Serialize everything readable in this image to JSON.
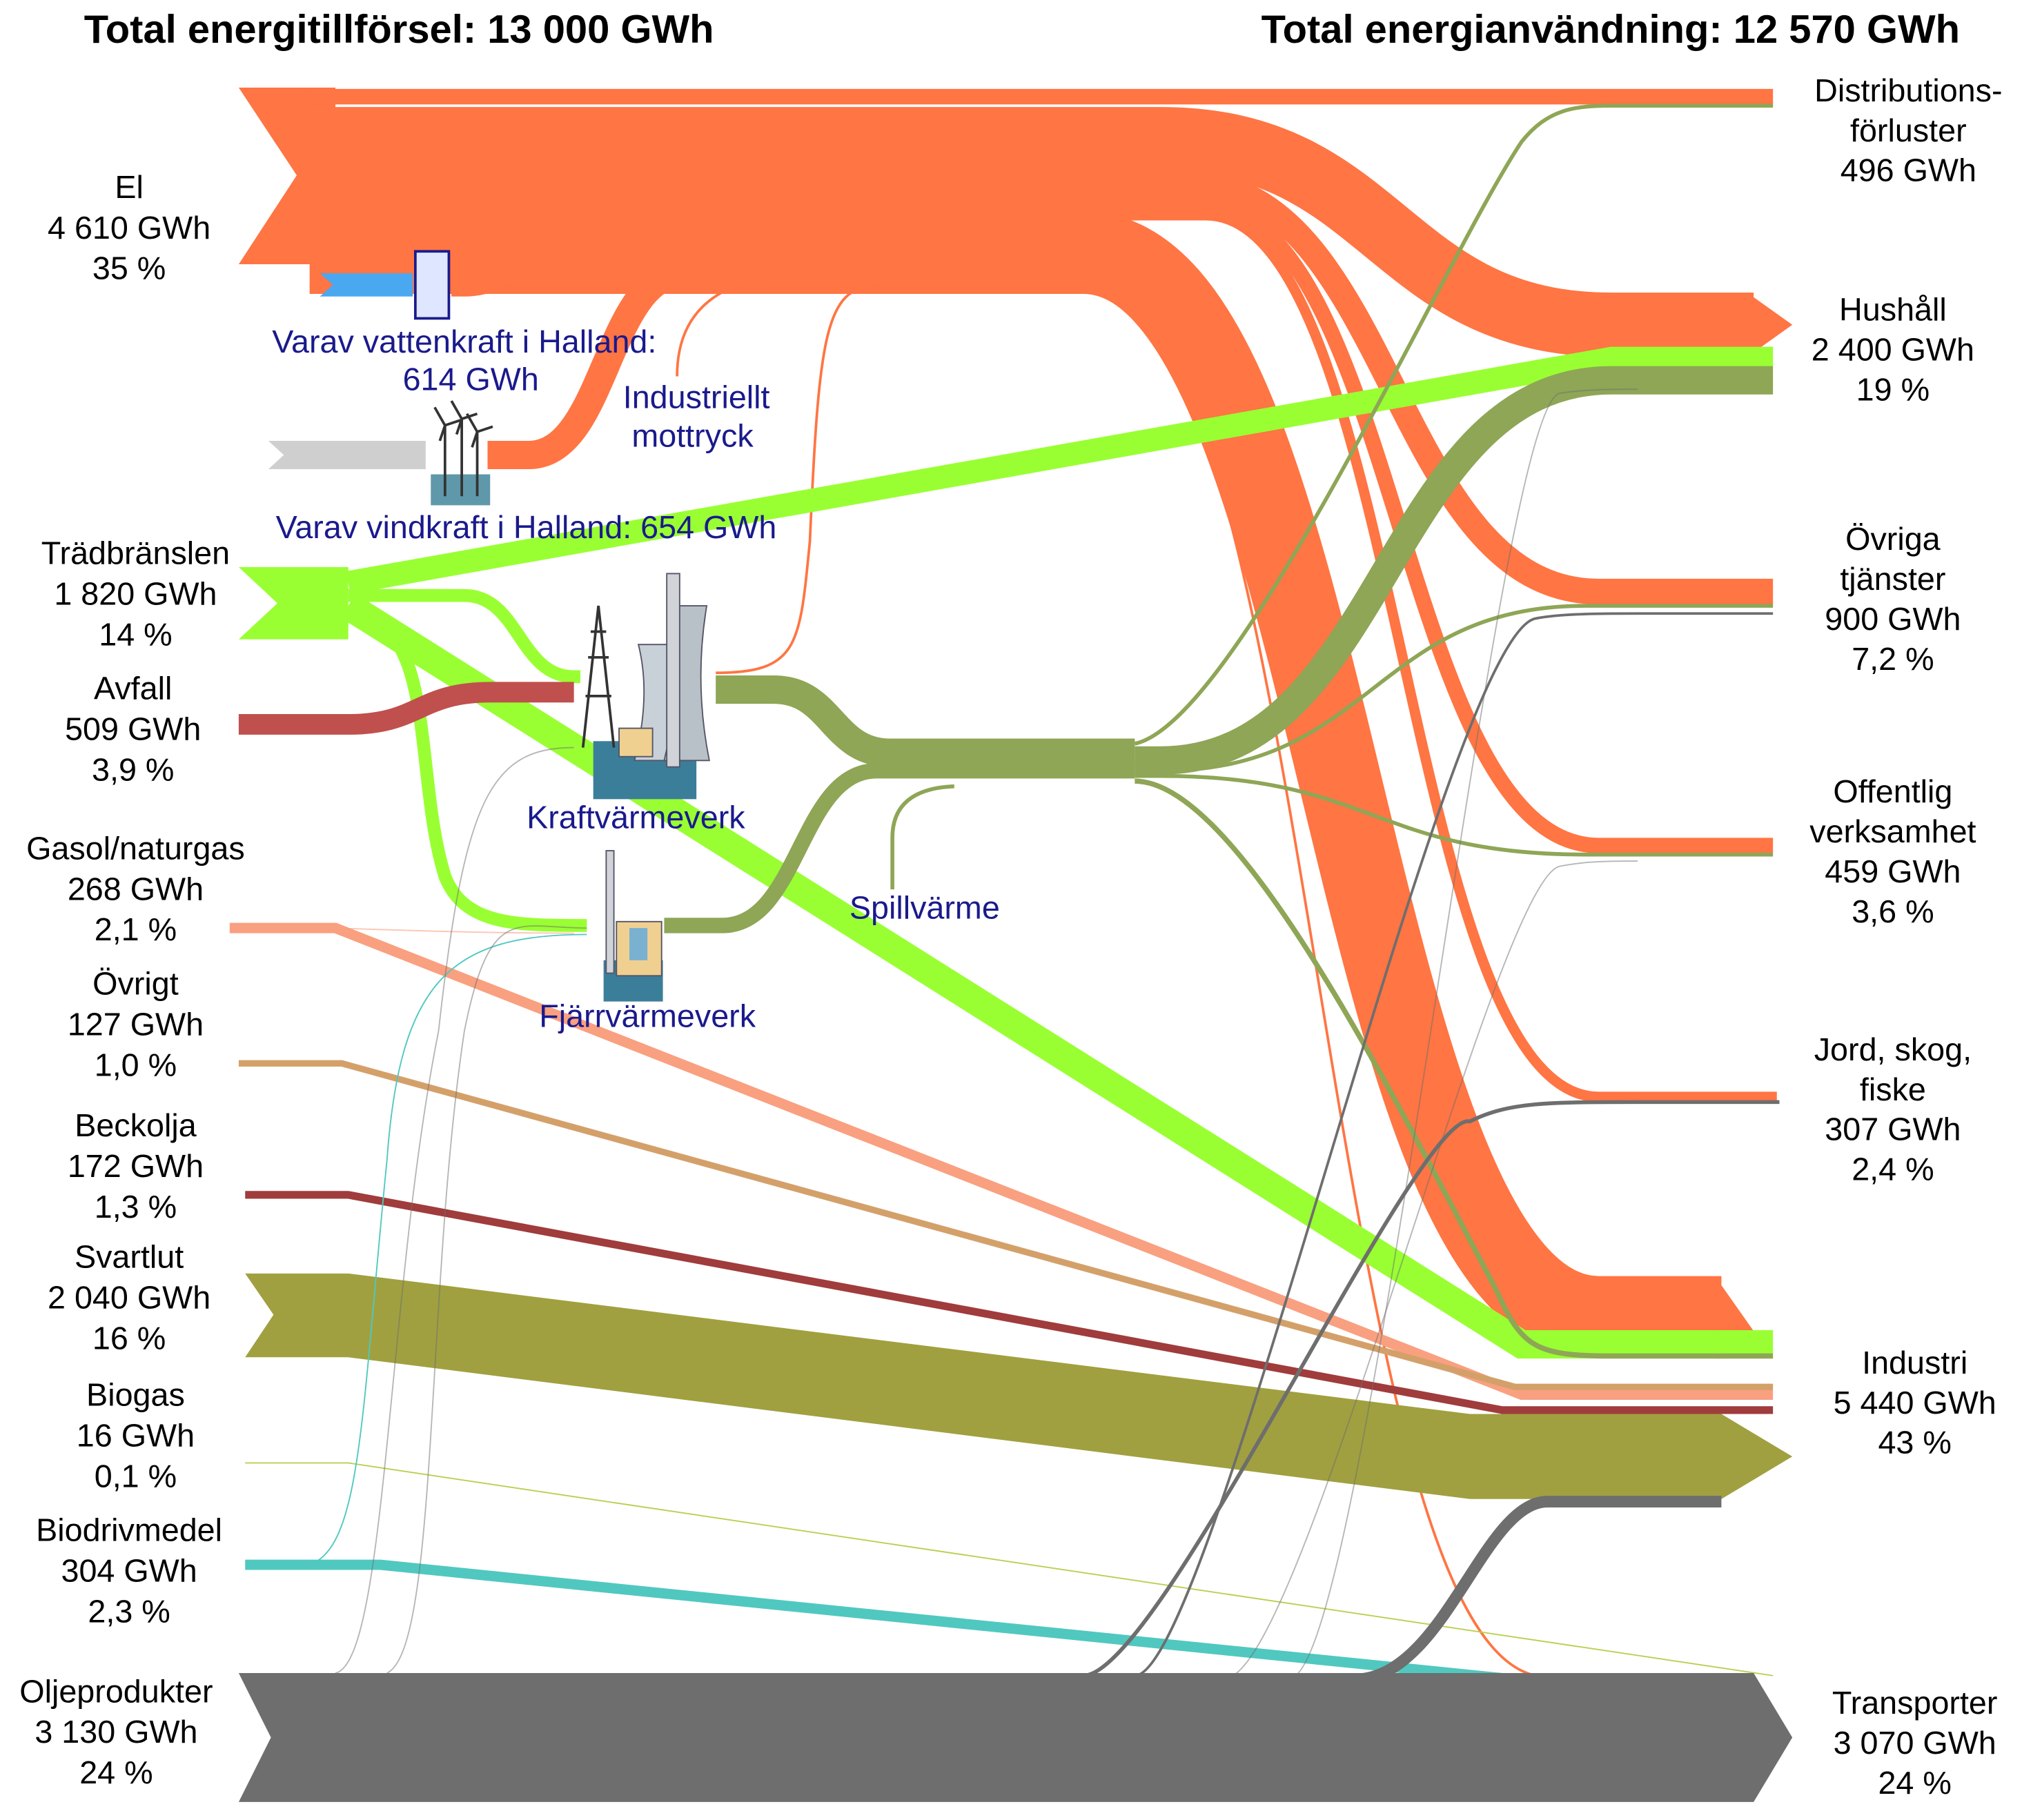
{
  "titles": {
    "supply": "Total energitillförsel: 13 000 GWh",
    "use": "Total energianvändning: 12 570 GWh"
  },
  "sources": [
    {
      "lines": [
        "El",
        "4 610 GWh",
        "35 %"
      ]
    },
    {
      "lines": [
        "Trädbränslen",
        "1 820 GWh",
        "14 %"
      ]
    },
    {
      "lines": [
        "Avfall",
        "509 GWh",
        "3,9 %"
      ]
    },
    {
      "lines": [
        "Gasol/naturgas",
        "268 GWh",
        "2,1 %"
      ]
    },
    {
      "lines": [
        "Övrigt",
        "127 GWh",
        "1,0 %"
      ]
    },
    {
      "lines": [
        "Beckolja",
        "172 GWh",
        "1,3 %"
      ]
    },
    {
      "lines": [
        "Svartlut",
        "2 040 GWh",
        "16 %"
      ]
    },
    {
      "lines": [
        "Biogas",
        "16 GWh",
        "0,1 %"
      ]
    },
    {
      "lines": [
        "Biodrivmedel",
        "304 GWh",
        "2,3 %"
      ]
    },
    {
      "lines": [
        "Oljeprodukter",
        "3 130 GWh",
        "24 %"
      ]
    }
  ],
  "uses": [
    {
      "lines": [
        "Distributions-",
        "förluster",
        "496 GWh"
      ]
    },
    {
      "lines": [
        "Hushåll",
        "2 400 GWh",
        "19 %"
      ]
    },
    {
      "lines": [
        "Övriga",
        "tjänster",
        "900 GWh",
        "7,2 %"
      ]
    },
    {
      "lines": [
        "Offentlig",
        "verksamhet",
        "459 GWh",
        "3,6 %"
      ]
    },
    {
      "lines": [
        "Jord, skog,",
        "fiske",
        "307 GWh",
        "2,4 %"
      ]
    },
    {
      "lines": [
        "Industri",
        "5 440 GWh",
        "43 %"
      ]
    },
    {
      "lines": [
        "Transporter",
        "3 070 GWh",
        "24 %"
      ]
    }
  ],
  "annotations": {
    "hydro": [
      "Varav vattenkraft i Halland:",
      "614 GWh"
    ],
    "backpressure": [
      "Industriellt",
      "mottryck"
    ],
    "wind": "Varav vindkraft i Halland: 654 GWh",
    "chp": "Kraftvärmeverk",
    "waste_heat": "Spillvärme",
    "district_heating": "Fjärrvärmeverk"
  }
}
